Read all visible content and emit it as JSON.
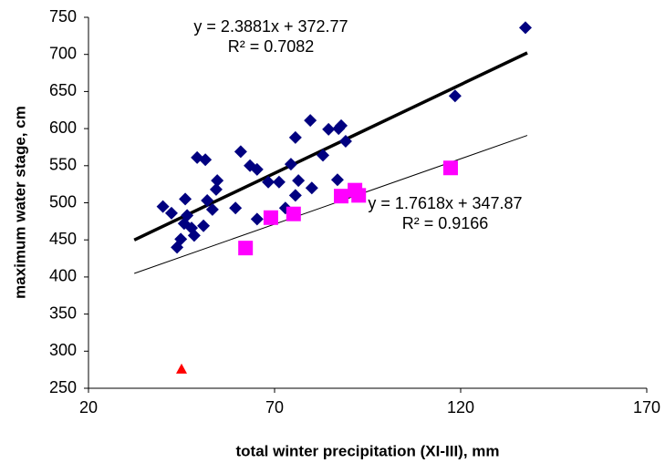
{
  "chart_data": {
    "type": "scatter",
    "x_label": "total winter precipitation (XI-III), mm",
    "y_label": "maximum water stage, cm",
    "xlim": [
      20,
      170
    ],
    "xticks": [
      20,
      70,
      120,
      170
    ],
    "ylim": [
      250,
      750
    ],
    "yticks": [
      250,
      300,
      350,
      400,
      450,
      500,
      550,
      600,
      650,
      700,
      750
    ],
    "grid": false,
    "series": [
      {
        "marker": "diamond",
        "color": "#000080",
        "x": [
          40,
          42.3,
          43.8,
          44.8,
          46,
          45.7,
          46.5,
          47.7,
          48.4,
          49.2,
          50.9,
          51.4,
          51.9,
          53.3,
          54.3,
          54.6,
          59.5,
          60.9,
          63.4,
          65.3,
          65.3,
          68.3,
          71.2,
          72.9,
          74.4,
          75.6,
          75.6,
          76.4,
          79.6,
          80,
          83,
          84.5,
          87.2,
          87.9,
          86.9,
          89.1,
          118.5,
          137.4
        ],
        "values": [
          495,
          486,
          440,
          451,
          505,
          472,
          483,
          466,
          456,
          561,
          469,
          558,
          503,
          491,
          518,
          530,
          493,
          569,
          550,
          545,
          478,
          528,
          528,
          493,
          552,
          588,
          510,
          530,
          611,
          520,
          564,
          599,
          600,
          604,
          531,
          583,
          644,
          736
        ]
      },
      {
        "marker": "square",
        "color": "#ff00ff",
        "x": [
          62.2,
          69,
          75.1,
          87.9,
          91.6,
          92.6,
          117.3
        ],
        "values": [
          439,
          480,
          485,
          509,
          517,
          510,
          547
        ]
      },
      {
        "marker": "triangle",
        "color": "#ff0000",
        "x": [
          45
        ],
        "values": [
          276
        ]
      }
    ],
    "trendlines": [
      {
        "equation": "y = 2.3881x + 372.77",
        "r2_label": "R² = 0.7082",
        "slope": 2.3881,
        "intercept": 372.77,
        "x": [
          32.3,
          137.9
        ],
        "color": "#000000",
        "width": 3.5
      },
      {
        "equation": "y = 1.7618x + 347.87",
        "r2_label": "R² = 0.9166",
        "slope": 1.7618,
        "intercept": 347.87,
        "x": [
          32.3,
          137.9
        ],
        "color": "#000000",
        "width": 1
      }
    ]
  }
}
